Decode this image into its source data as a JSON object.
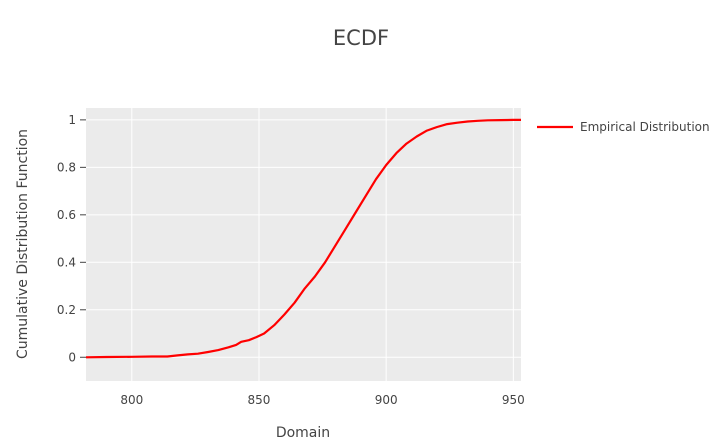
{
  "chart_data": {
    "type": "line",
    "title": "ECDF",
    "xlabel": "Domain",
    "ylabel": "Cumulative Distribution Function",
    "xlim": [
      782,
      953
    ],
    "ylim": [
      -0.1,
      1.05
    ],
    "x_ticks": [
      800,
      850,
      900,
      950
    ],
    "y_ticks": [
      0,
      0.2,
      0.4,
      0.6,
      0.8,
      1
    ],
    "y_tick_labels": [
      "0",
      "0.2",
      "0.4",
      "0.6",
      "0.8",
      "1"
    ],
    "grid": true,
    "legend_position": "top-right",
    "colors": {
      "plot_background": "#ebebeb",
      "grid": "#ffffff",
      "series_line": "#ff0000",
      "text": "#444444"
    },
    "series": [
      {
        "name": "Empirical Distribution",
        "x": [
          782,
          790,
          800,
          808,
          814,
          818,
          822,
          826,
          830,
          834,
          838,
          841,
          843,
          846,
          849,
          852,
          856,
          860,
          864,
          868,
          872,
          876,
          880,
          884,
          888,
          892,
          896,
          900,
          904,
          908,
          912,
          916,
          920,
          924,
          928,
          932,
          936,
          940,
          945,
          950,
          953
        ],
        "y": [
          0.0,
          0.001,
          0.002,
          0.003,
          0.003,
          0.008,
          0.012,
          0.015,
          0.022,
          0.03,
          0.042,
          0.052,
          0.065,
          0.072,
          0.085,
          0.1,
          0.135,
          0.18,
          0.23,
          0.29,
          0.34,
          0.4,
          0.47,
          0.54,
          0.61,
          0.68,
          0.75,
          0.81,
          0.86,
          0.9,
          0.93,
          0.955,
          0.97,
          0.982,
          0.988,
          0.993,
          0.996,
          0.998,
          0.999,
          1.0,
          1.0
        ]
      }
    ]
  }
}
